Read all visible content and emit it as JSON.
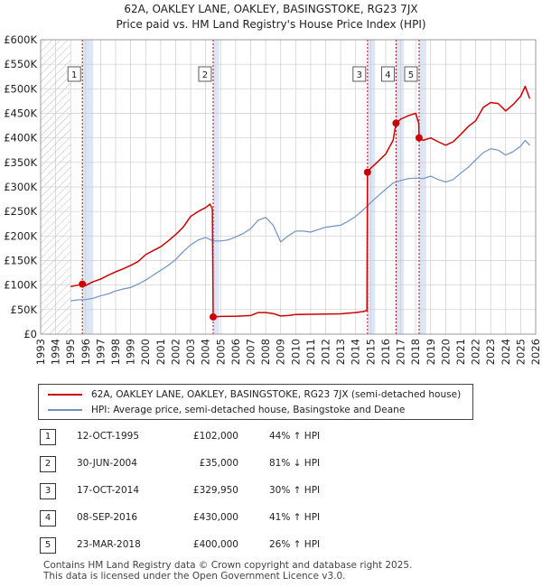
{
  "title_line1": "62A, OAKLEY LANE, OAKLEY, BASINGSTOKE, RG23 7JX",
  "title_line2": "Price paid vs. HM Land Registry's House Price Index (HPI)",
  "legend": {
    "property": "62A, OAKLEY LANE, OAKLEY, BASINGSTOKE, RG23 7JX (semi-detached house)",
    "hpi": "HPI: Average price, semi-detached house, Basingstoke and Deane"
  },
  "colors": {
    "property": "#cc0000",
    "hpi": "#6f93c8",
    "shade": "#dde6f4",
    "grid": "#cccccc",
    "hatch": "#bbbbbb"
  },
  "sales": [
    {
      "num": "1",
      "date": "12-OCT-1995",
      "price": "£102,000",
      "hpi": "44% ↑ HPI"
    },
    {
      "num": "2",
      "date": "30-JUN-2004",
      "price": "£35,000",
      "hpi": "81% ↓ HPI"
    },
    {
      "num": "3",
      "date": "17-OCT-2014",
      "price": "£329,950",
      "hpi": "30% ↑ HPI"
    },
    {
      "num": "4",
      "date": "08-SEP-2016",
      "price": "£430,000",
      "hpi": "41% ↑ HPI"
    },
    {
      "num": "5",
      "date": "23-MAR-2018",
      "price": "£400,000",
      "hpi": "26% ↑ HPI"
    }
  ],
  "footer": {
    "line1": "Contains HM Land Registry data © Crown copyright and database right 2025.",
    "line2": "This data is licensed under the Open Government Licence v3.0."
  },
  "chart_data": {
    "type": "line",
    "title": "62A, OAKLEY LANE, OAKLEY, BASINGSTOKE, RG23 7JX",
    "subtitle": "Price paid vs. HM Land Registry's House Price Index (HPI)",
    "xlim": [
      1993,
      2026
    ],
    "ylim": [
      0,
      600000
    ],
    "x_ticks": [
      1993,
      1994,
      1995,
      1996,
      1997,
      1998,
      1999,
      2000,
      2001,
      2002,
      2003,
      2004,
      2005,
      2006,
      2007,
      2008,
      2009,
      2010,
      2011,
      2012,
      2013,
      2014,
      2015,
      2016,
      2017,
      2018,
      2019,
      2020,
      2021,
      2022,
      2023,
      2024,
      2025,
      2026
    ],
    "y_ticks": [
      0,
      50000,
      100000,
      150000,
      200000,
      250000,
      300000,
      350000,
      400000,
      450000,
      500000,
      550000,
      600000
    ],
    "y_tick_labels": [
      "£0",
      "£50K",
      "£100K",
      "£150K",
      "£200K",
      "£250K",
      "£300K",
      "£350K",
      "£400K",
      "£450K",
      "£500K",
      "£550K",
      "£600K"
    ],
    "hatched_x_before": 1995,
    "shaded_ranges": [
      [
        1995.78,
        1996.5
      ],
      [
        2004.5,
        2004.9
      ],
      [
        2014.79,
        2015.3
      ],
      [
        2016.69,
        2017.2
      ],
      [
        2018.23,
        2018.7
      ]
    ],
    "series": [
      {
        "name": "62A, OAKLEY LANE, OAKLEY, BASINGSTOKE, RG23 7JX (semi-detached house)",
        "color": "#cc0000",
        "x": [
          1995.0,
          1995.5,
          1995.78,
          1996.0,
          1996.5,
          1997.0,
          1997.5,
          1998.0,
          1998.5,
          1999.0,
          1999.5,
          2000.0,
          2000.5,
          2001.0,
          2001.5,
          2002.0,
          2002.5,
          2003.0,
          2003.5,
          2004.0,
          2004.3,
          2004.45,
          2004.5,
          2005.0,
          2006.0,
          2007.0,
          2007.5,
          2008.0,
          2008.5,
          2009.0,
          2009.5,
          2010.0,
          2011.0,
          2012.0,
          2013.0,
          2014.0,
          2014.5,
          2014.75,
          2014.79,
          2015.0,
          2015.5,
          2016.0,
          2016.5,
          2016.69,
          2017.0,
          2017.5,
          2018.0,
          2018.2,
          2018.23,
          2018.5,
          2019.0,
          2019.5,
          2020.0,
          2020.5,
          2021.0,
          2021.5,
          2022.0,
          2022.5,
          2023.0,
          2023.5,
          2024.0,
          2024.5,
          2025.0,
          2025.3,
          2025.6
        ],
        "y": [
          97000,
          100000,
          102000,
          99000,
          107000,
          112000,
          120000,
          127000,
          133000,
          140000,
          148000,
          162000,
          170000,
          178000,
          190000,
          203000,
          218000,
          240000,
          250000,
          258000,
          265000,
          255000,
          35000,
          36000,
          36500,
          38000,
          44000,
          44000,
          42000,
          37000,
          38000,
          40000,
          40500,
          41000,
          41500,
          44000,
          46000,
          48000,
          329950,
          338000,
          352000,
          367000,
          395000,
          430000,
          438000,
          445000,
          450000,
          430000,
          400000,
          395000,
          400000,
          392000,
          385000,
          392000,
          407000,
          423000,
          435000,
          462000,
          472000,
          470000,
          455000,
          468000,
          485000,
          505000,
          480000
        ]
      },
      {
        "name": "HPI: Average price, semi-detached house, Basingstoke and Deane",
        "color": "#6f93c8",
        "x": [
          1995.0,
          1995.5,
          1996.0,
          1996.5,
          1997.0,
          1997.5,
          1998.0,
          1998.5,
          1999.0,
          1999.5,
          2000.0,
          2000.5,
          2001.0,
          2001.5,
          2002.0,
          2002.5,
          2003.0,
          2003.5,
          2004.0,
          2004.5,
          2005.0,
          2005.5,
          2006.0,
          2006.5,
          2007.0,
          2007.5,
          2008.0,
          2008.5,
          2009.0,
          2009.5,
          2010.0,
          2010.5,
          2011.0,
          2011.5,
          2012.0,
          2012.5,
          2013.0,
          2013.5,
          2014.0,
          2014.5,
          2015.0,
          2015.5,
          2016.0,
          2016.5,
          2017.0,
          2017.5,
          2018.0,
          2018.5,
          2019.0,
          2019.5,
          2020.0,
          2020.5,
          2021.0,
          2021.5,
          2022.0,
          2022.5,
          2023.0,
          2023.5,
          2024.0,
          2024.5,
          2025.0,
          2025.3,
          2025.6
        ],
        "y": [
          68000,
          70000,
          70500,
          73000,
          78000,
          82000,
          88000,
          92000,
          95000,
          102000,
          110000,
          120000,
          130000,
          140000,
          152000,
          168000,
          182000,
          192000,
          197000,
          190000,
          190000,
          192000,
          198000,
          205000,
          215000,
          232000,
          238000,
          222000,
          188000,
          200000,
          210000,
          210000,
          208000,
          213000,
          218000,
          220000,
          222000,
          230000,
          240000,
          253000,
          268000,
          282000,
          295000,
          308000,
          313000,
          317000,
          318000,
          317000,
          322000,
          315000,
          310000,
          315000,
          328000,
          340000,
          355000,
          370000,
          378000,
          375000,
          365000,
          372000,
          383000,
          395000,
          385000
        ]
      }
    ],
    "sales": [
      {
        "label": "1",
        "x": 1995.78,
        "price": 102000
      },
      {
        "label": "2",
        "x": 2004.5,
        "price": 35000
      },
      {
        "label": "3",
        "x": 2014.79,
        "price": 329950
      },
      {
        "label": "4",
        "x": 2016.69,
        "price": 430000
      },
      {
        "label": "5",
        "x": 2018.23,
        "price": 400000
      }
    ]
  }
}
